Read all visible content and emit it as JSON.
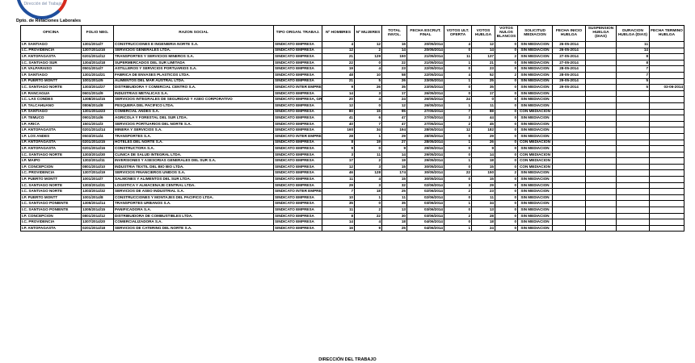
{
  "logo": {
    "text": "Dirección del Trabajo"
  },
  "title": "Dpto. de Relaciones Laborales",
  "footer": "DIRECCIÓN DEL TRABAJO",
  "columns": [
    "OFICINA",
    "FOLIO NEG.",
    "RAZON SOCIAL",
    "TIPO ORGAN. TRABAJ.",
    "Nº HOMBRES",
    "Nº MUJERES",
    "TOTAL INVOL.",
    "FECHA ESCRUT. FINAL",
    "VOTOS ULT. OFERTA",
    "VOTOS HUELGA",
    "VOTOS NULOS BLANCOS",
    "SOLICITUD MEDIACION",
    "FECHA INICIO HUELGA",
    "SUSPENSION HUELGA (DIAS)",
    "DURACION HUELGA (DIAS)",
    "FECHA TERMINO HUELGA"
  ],
  "rows": [
    [
      "I.P. SANTIAGO",
      "1301/2014/7",
      "CONSTRUCCIONES E INGENIERIA NORTE S.A.",
      "SINDICATO EMPRESA",
      "4",
      "12",
      "16",
      "20/05/2014",
      "4",
      "12",
      "0",
      "SIN MEDIACION",
      "26-05-2014",
      "",
      "11",
      ""
    ],
    [
      "I.C. PROVIDENCIA",
      "1307/2014/16",
      "SERVICIOS GENERALES LTDA.",
      "SINDICATO EMPRESA",
      "12",
      "2",
      "14",
      "20/05/2014",
      "0",
      "14",
      "0",
      "SIN MEDIACION",
      "26-05-2014",
      "",
      "14",
      ""
    ],
    [
      "I.P. ANTOFAGASTA",
      "0201/2014/12",
      "TRANSPORTES Y SERVICIOS MINEROS S.A.",
      "SINDICATO EMPRESA",
      "21",
      "129",
      "150",
      "21/05/2014",
      "11",
      "137",
      "2",
      "SIN MEDIACION",
      "27-05-2014",
      "",
      "8",
      ""
    ],
    [
      "I.C. SANTIAGO SUR",
      "1304/2014/18",
      "SUPERMERCADOS DEL SUR LIMITADA",
      "SINDICATO EMPRESA",
      "22",
      "0",
      "22",
      "21/05/2014",
      "1",
      "21",
      "0",
      "SIN MEDIACION",
      "27-05-2014",
      "",
      "8",
      ""
    ],
    [
      "I.P. VALPARAISO",
      "0501/2014/7",
      "ASTILLEROS Y SERVICIOS PORTUARIOS S.A.",
      "SINDICATO EMPRESA",
      "19",
      "4",
      "23",
      "22/05/2014",
      "0",
      "23",
      "0",
      "SIN MEDIACION",
      "28-05-2014",
      "",
      "7",
      ""
    ],
    [
      "I.P. SANTIAGO",
      "1301/2014/21",
      "FABRICA DE ENVASES PLASTICOS LTDA.",
      "SINDICATO EMPRESA",
      "48",
      "10",
      "58",
      "22/05/2014",
      "4",
      "52",
      "2",
      "SIN MEDIACION",
      "28-05-2014",
      "",
      "7",
      ""
    ],
    [
      "I.P. PUERTO MONTT",
      "1001/2014/5",
      "ALIMENTOS DEL MAR AUSTRAL LTDA.",
      "SINDICATO EMPRESA",
      "21",
      "5",
      "26",
      "23/05/2014",
      "1",
      "25",
      "0",
      "SIN MEDIACION",
      "29-05-2014",
      "",
      "5",
      ""
    ],
    [
      "I.C. SANTIAGO NORTE",
      "1303/2014/27",
      "DISTRIBUIDORA Y COMERCIAL CENTRO S.A.",
      "SINDICATO INTER EMPRESA",
      "9",
      "26",
      "35",
      "23/05/2014",
      "0",
      "35",
      "0",
      "SIN MEDIACION",
      "29-05-2014",
      "",
      "5",
      "03-06-2014"
    ],
    [
      "I.P. RANCAGUA",
      "0601/2014/9",
      "INDUSTRIAS METALICAS S.A.",
      "SINDICATO EMPRESA",
      "14",
      "3",
      "17",
      "26/05/2014",
      "0",
      "17",
      "0",
      "SIN MEDIACION",
      "",
      "",
      "",
      ""
    ],
    [
      "I.C. LAS CONDES",
      "1308/2014/15",
      "SERVICIOS INTEGRALES DE SEGURIDAD Y ASEO CORPORATIVO",
      "SINDICATO EMPRESA, GRUPO TRABAJADORES",
      "20",
      "4",
      "24",
      "26/05/2014",
      "24",
      "0",
      "0",
      "SIN MEDIACION",
      "",
      "",
      "",
      ""
    ],
    [
      "I.P. TALCAHUANO",
      "0806/2014/8",
      "PESQUERA DEL PACIFICO LTDA.",
      "SINDICATO EMPRESA",
      "12",
      "0",
      "12",
      "26/05/2014",
      "1",
      "11",
      "0",
      "SIN MEDIACION",
      "",
      "",
      "",
      ""
    ],
    [
      "I.P. SANTIAGO",
      "1301/2014/23",
      "COMERCIAL ANDES S.A.",
      "SINDICATO EMPRESA",
      "80",
      "15",
      "95",
      "27/05/2014",
      "7",
      "88",
      "0",
      "CON MEDIACION",
      "",
      "",
      "",
      ""
    ],
    [
      "I.P. TEMUCO",
      "0901/2014/6",
      "AGRICOLA Y FORESTAL DEL SUR LTDA.",
      "SINDICATO EMPRESA",
      "41",
      "6",
      "47",
      "27/05/2014",
      "3",
      "44",
      "0",
      "SIN MEDIACION",
      "",
      "",
      "",
      ""
    ],
    [
      "I.P. ARICA",
      "1501/2014/3",
      "SERVICIOS PORTUARIOS DEL NORTE S.A.",
      "SINDICATO EMPRESA",
      "40",
      "7",
      "47",
      "27/05/2014",
      "2",
      "45",
      "0",
      "SIN MEDIACION",
      "",
      "",
      "",
      ""
    ],
    [
      "I.P. ANTOFAGASTA",
      "0201/2014/14",
      "MINERA Y SERVICIOS S.A.",
      "SINDICATO EMPRESA",
      "160",
      "34",
      "194",
      "28/05/2014",
      "12",
      "182",
      "0",
      "SIN MEDIACION",
      "",
      "",
      "",
      ""
    ],
    [
      "I.P. LOS ANDES",
      "0503/2014/4",
      "TRANSPORTES S.A.",
      "SINDICATO INTER EMPRESA",
      "28",
      "1",
      "29",
      "28/05/2014",
      "0",
      "29",
      "0",
      "SIN MEDIACION",
      "",
      "",
      "",
      ""
    ],
    [
      "I.P. ANTOFAGASTA",
      "0201/2014/15",
      "HOTELES DEL NORTE S.A.",
      "SINDICATO EMPRESA",
      "8",
      "19",
      "27",
      "28/05/2014",
      "1",
      "26",
      "0",
      "CON MEDIACION",
      "",
      "",
      "",
      ""
    ],
    [
      "I.P. ANTOFAGASTA",
      "0201/2014/16",
      "CONSTRUCTORA S.A.",
      "SINDICATO EMPRESA",
      "9",
      "0",
      "9",
      "29/05/2014",
      "0",
      "9",
      "0",
      "SIN MEDIACION",
      "",
      "",
      "",
      ""
    ],
    [
      "I.C. SANTIAGO NORTE",
      "1303/2014/30",
      "CLINICA DE SALUD INTEGRAL LTDA.",
      "SINDICATO EMPRESA",
      "3",
      "11",
      "14",
      "29/05/2014",
      "0",
      "14",
      "0",
      "CON MEDIACION",
      "",
      "",
      "",
      ""
    ],
    [
      "I.P. MAIPO",
      "1302/2014/11",
      "INVERSIONES Y ASESORIAS GENERALES DEL SUR S.A.",
      "SINDICATO EMPRESA",
      "17",
      "2",
      "19",
      "29/05/2014",
      "1",
      "18",
      "0",
      "CON MEDIACION",
      "",
      "",
      "",
      ""
    ],
    [
      "I.P. CONCEPCION",
      "0801/2014/10",
      "INDUSTRIA TEXTIL DEL BIO BIO LTDA.",
      "SINDICATO EMPRESA",
      "12",
      "3",
      "15",
      "30/05/2014",
      "0",
      "15",
      "0",
      "CON MEDIACION",
      "",
      "",
      "",
      ""
    ],
    [
      "I.C. PROVIDENCIA",
      "1307/2014/19",
      "SERVICIOS FINANCIEROS UNIDOS S.A.",
      "SINDICATO EMPRESA",
      "46",
      "128",
      "174",
      "30/05/2014",
      "22",
      "150",
      "2",
      "SIN MEDIACION",
      "",
      "",
      "",
      ""
    ],
    [
      "I.P. PUERTO MONTT",
      "1001/2014/7",
      "SALMONES Y ALIMENTOS DEL SUR LTDA.",
      "SINDICATO EMPRESA",
      "11",
      "4",
      "15",
      "30/05/2014",
      "0",
      "15",
      "0",
      "SIN MEDIACION",
      "",
      "",
      "",
      ""
    ],
    [
      "I.C. SANTIAGO NORTE",
      "1303/2014/31",
      "LOGISTICA Y ALMACENAJE CENTRAL LTDA.",
      "SINDICATO EMPRESA",
      "29",
      "3",
      "32",
      "02/06/2014",
      "3",
      "29",
      "0",
      "SIN MEDIACION",
      "",
      "",
      "",
      ""
    ],
    [
      "I.C. SANTIAGO NORTE",
      "1303/2014/32",
      "SERVICIOS DE ASEO INDUSTRIAL S.A.",
      "SINDICATO INTER EMPRESA",
      "7",
      "18",
      "25",
      "02/06/2014",
      "2",
      "23",
      "0",
      "SIN MEDIACION",
      "",
      "",
      "",
      ""
    ],
    [
      "I.P. PUERTO MONTT",
      "1001/2014/8",
      "CONSTRUCCIONES Y MONTAJES DEL PACIFICO LTDA.",
      "SINDICATO EMPRESA",
      "10",
      "1",
      "11",
      "02/06/2014",
      "0",
      "11",
      "0",
      "SIN MEDIACION",
      "",
      "",
      "",
      ""
    ],
    [
      "I.C. SANTIAGO PONIENTE",
      "1305/2014/14",
      "TRANSPORTES URBANOS S.A.",
      "SINDICATO EMPRESA",
      "35",
      "0",
      "35",
      "03/06/2014",
      "1",
      "34",
      "0",
      "SIN MEDIACION",
      "",
      "",
      "",
      ""
    ],
    [
      "I.C. SANTIAGO PONIENTE",
      "1305/2014/15",
      "PANIFICADORA S.A.",
      "SINDICATO EMPRESA",
      "11",
      "2",
      "13",
      "03/06/2014",
      "0",
      "13",
      "0",
      "SIN MEDIACION",
      "",
      "",
      "",
      ""
    ],
    [
      "I.P. CONCEPCION",
      "0801/2014/12",
      "DISTRIBUIDORA DE COMBUSTIBLES LTDA.",
      "SINDICATO EMPRESA",
      "8",
      "22",
      "30",
      "03/06/2014",
      "2",
      "28",
      "0",
      "SIN MEDIACION",
      "",
      "",
      "",
      ""
    ],
    [
      "I.C. PROVIDENCIA",
      "1307/2014/20",
      "COMERCIALIZADORA S.A.",
      "SINDICATO EMPRESA",
      "14",
      "4",
      "18",
      "04/06/2014",
      "0",
      "18",
      "0",
      "SIN MEDIACION",
      "",
      "",
      "",
      ""
    ],
    [
      "I.P. ANTOFAGASTA",
      "0201/2014/18",
      "SERVICIOS DE CATERING DEL NORTE S.A.",
      "SINDICATO EMPRESA",
      "16",
      "9",
      "25",
      "04/06/2014",
      "1",
      "24",
      "0",
      "SIN MEDIACION",
      "",
      "",
      "",
      ""
    ]
  ]
}
